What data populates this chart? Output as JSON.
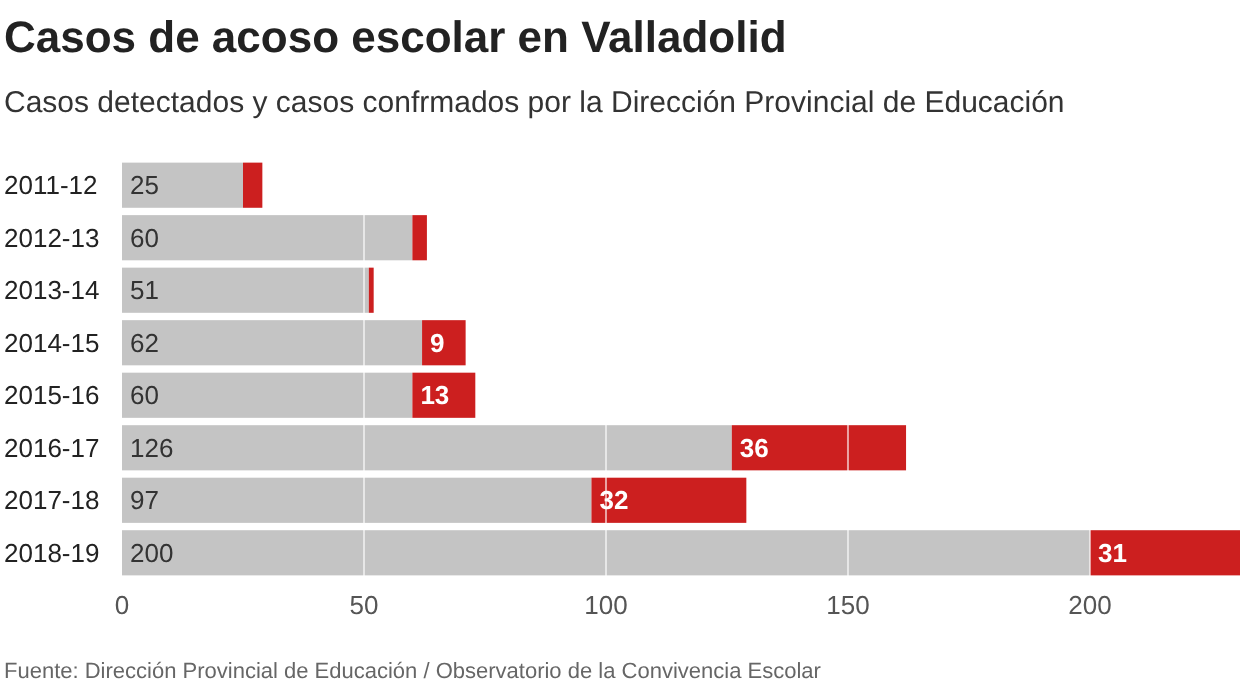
{
  "chart_data": {
    "type": "bar",
    "orientation": "horizontal",
    "stacked": true,
    "title": "Casos de acoso escolar en Valladolid",
    "subtitle": "Casos detectados y casos confrmados por la Dirección Provincial de Educación",
    "categories": [
      "2011-12",
      "2012-13",
      "2013-14",
      "2014-15",
      "2015-16",
      "2016-17",
      "2017-18",
      "2018-19"
    ],
    "series": [
      {
        "color": "#c4c4c4",
        "values": [
          25,
          60,
          51,
          62,
          60,
          126,
          97,
          200
        ],
        "value_labels": [
          "25",
          "60",
          "51",
          "62",
          "60",
          "126",
          "97",
          "200"
        ]
      },
      {
        "color": "#cc1f1f",
        "values": [
          4,
          3,
          1,
          9,
          13,
          36,
          32,
          31
        ],
        "value_labels": [
          null,
          null,
          null,
          "9",
          "13",
          "36",
          "32",
          "31"
        ]
      }
    ],
    "xlim": [
      0,
      231
    ],
    "xticks": [
      0,
      50,
      100,
      150,
      200
    ],
    "grid": "x",
    "annotations": [
      "Fuente: Dirección Provincial de Educación / Observatorio de la Convivencia Escolar"
    ]
  }
}
